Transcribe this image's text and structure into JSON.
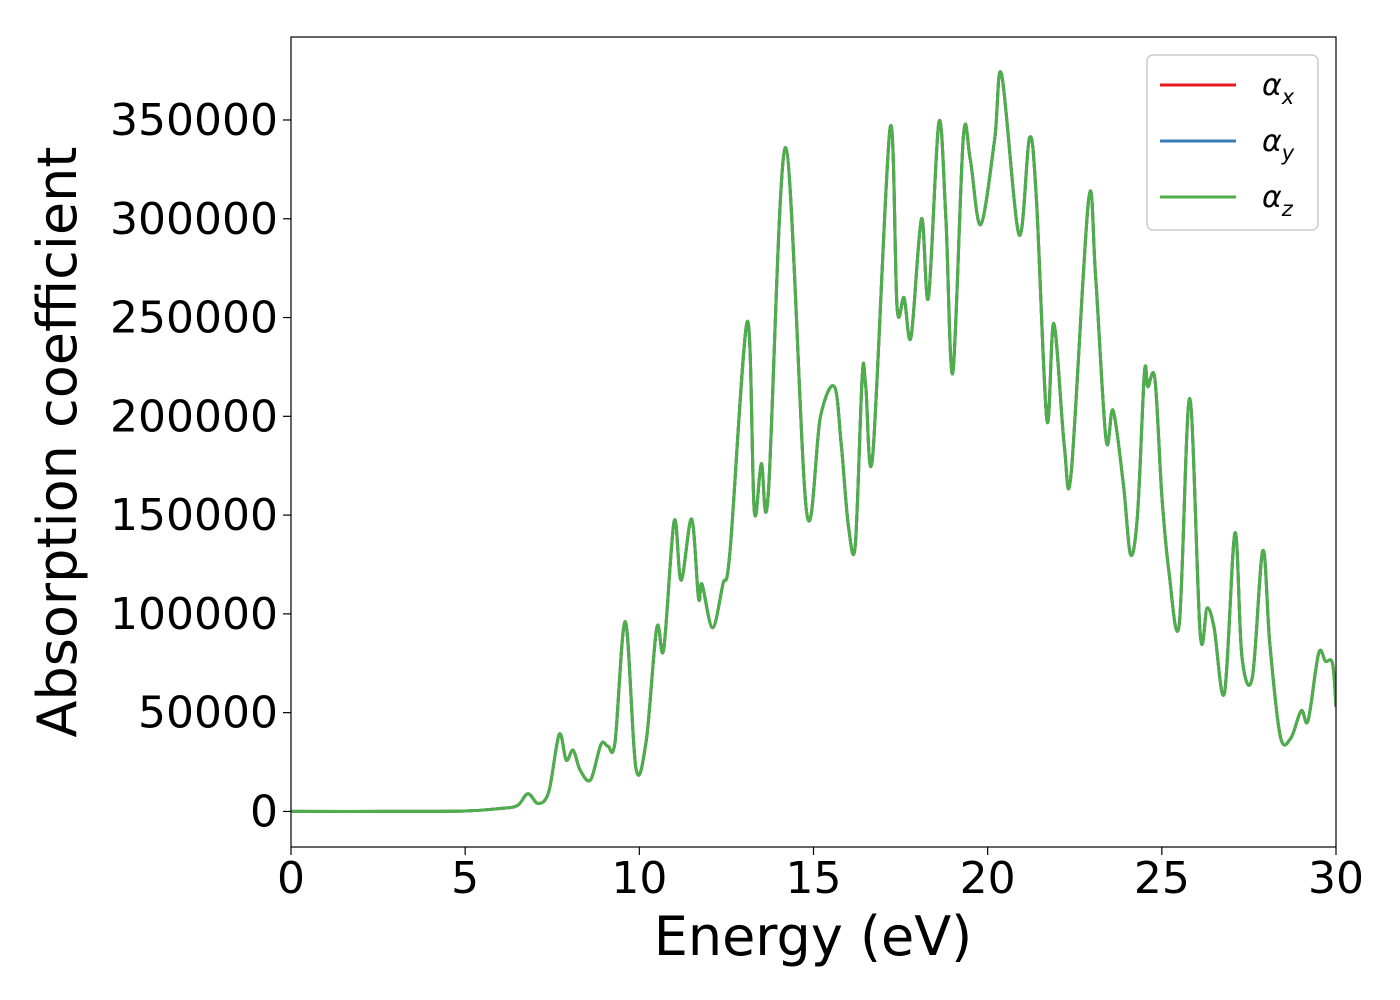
{
  "chart_data": {
    "type": "line",
    "xlabel": "Energy (eV)",
    "ylabel": "Absorption coefficient",
    "xlim": [
      0,
      30
    ],
    "ylim": [
      -18000,
      392000
    ],
    "xticks": [
      0,
      5,
      10,
      15,
      20,
      25,
      30
    ],
    "xtick_labels": [
      "0",
      "5",
      "10",
      "15",
      "20",
      "25",
      "30"
    ],
    "yticks": [
      0,
      50000,
      100000,
      150000,
      200000,
      250000,
      300000,
      350000
    ],
    "ytick_labels": [
      "0",
      "50000",
      "100000",
      "150000",
      "200000",
      "250000",
      "300000",
      "350000"
    ],
    "grid": false,
    "legend_position": "top-right",
    "series": [
      {
        "name": "α",
        "subscript": "x",
        "color": "#e41a1c"
      },
      {
        "name": "α",
        "subscript": "y",
        "color": "#377eb8"
      },
      {
        "name": "α",
        "subscript": "z",
        "color": "#4daf4a"
      }
    ],
    "x": [
      0,
      3,
      5,
      6,
      6.5,
      6.8,
      7.1,
      7.4,
      7.7,
      7.9,
      8.1,
      8.3,
      8.6,
      8.9,
      9.1,
      9.3,
      9.6,
      9.9,
      10.2,
      10.5,
      10.7,
      11.0,
      11.2,
      11.5,
      11.7,
      11.8,
      12.1,
      12.4,
      12.6,
      13.1,
      13.3,
      13.5,
      13.7,
      14.2,
      14.8,
      15.2,
      15.6,
      15.8,
      16.0,
      16.2,
      16.4,
      16.5,
      16.7,
      17.2,
      17.4,
      17.6,
      17.8,
      18.1,
      18.3,
      18.6,
      18.8,
      19.0,
      19.3,
      19.5,
      19.8,
      20.2,
      20.4,
      20.9,
      21.2,
      21.4,
      21.7,
      21.9,
      22.2,
      22.4,
      22.9,
      23.1,
      23.4,
      23.6,
      23.9,
      24.1,
      24.3,
      24.5,
      24.6,
      24.8,
      25.0,
      25.2,
      25.5,
      25.8,
      26.1,
      26.3,
      26.5,
      26.8,
      27.1,
      27.3,
      27.6,
      27.9,
      28.1,
      28.4,
      28.7,
      29.0,
      29.2,
      29.5,
      29.7,
      29.9,
      30.0
    ],
    "values": [
      0,
      0,
      200,
      1500,
      3000,
      9000,
      4000,
      10000,
      39000,
      26000,
      31000,
      21000,
      16000,
      34000,
      33000,
      35000,
      96000,
      22000,
      36000,
      93000,
      82000,
      147000,
      117000,
      148000,
      108000,
      115000,
      93000,
      115000,
      131000,
      248000,
      152000,
      176000,
      160000,
      336000,
      152000,
      200000,
      215000,
      185000,
      145000,
      135000,
      221000,
      215000,
      180000,
      346000,
      255000,
      260000,
      240000,
      300000,
      260000,
      349000,
      300000,
      222000,
      341000,
      330000,
      297000,
      340000,
      373000,
      292000,
      341000,
      310000,
      198000,
      247000,
      185000,
      172000,
      310000,
      270000,
      188000,
      203000,
      165000,
      130000,
      150000,
      222000,
      215000,
      219000,
      160000,
      122000,
      95000,
      209000,
      90000,
      103000,
      93000,
      60000,
      141000,
      78000,
      68000,
      132000,
      85000,
      38000,
      37000,
      51000,
      46000,
      80000,
      76000,
      75000,
      53000
    ]
  }
}
